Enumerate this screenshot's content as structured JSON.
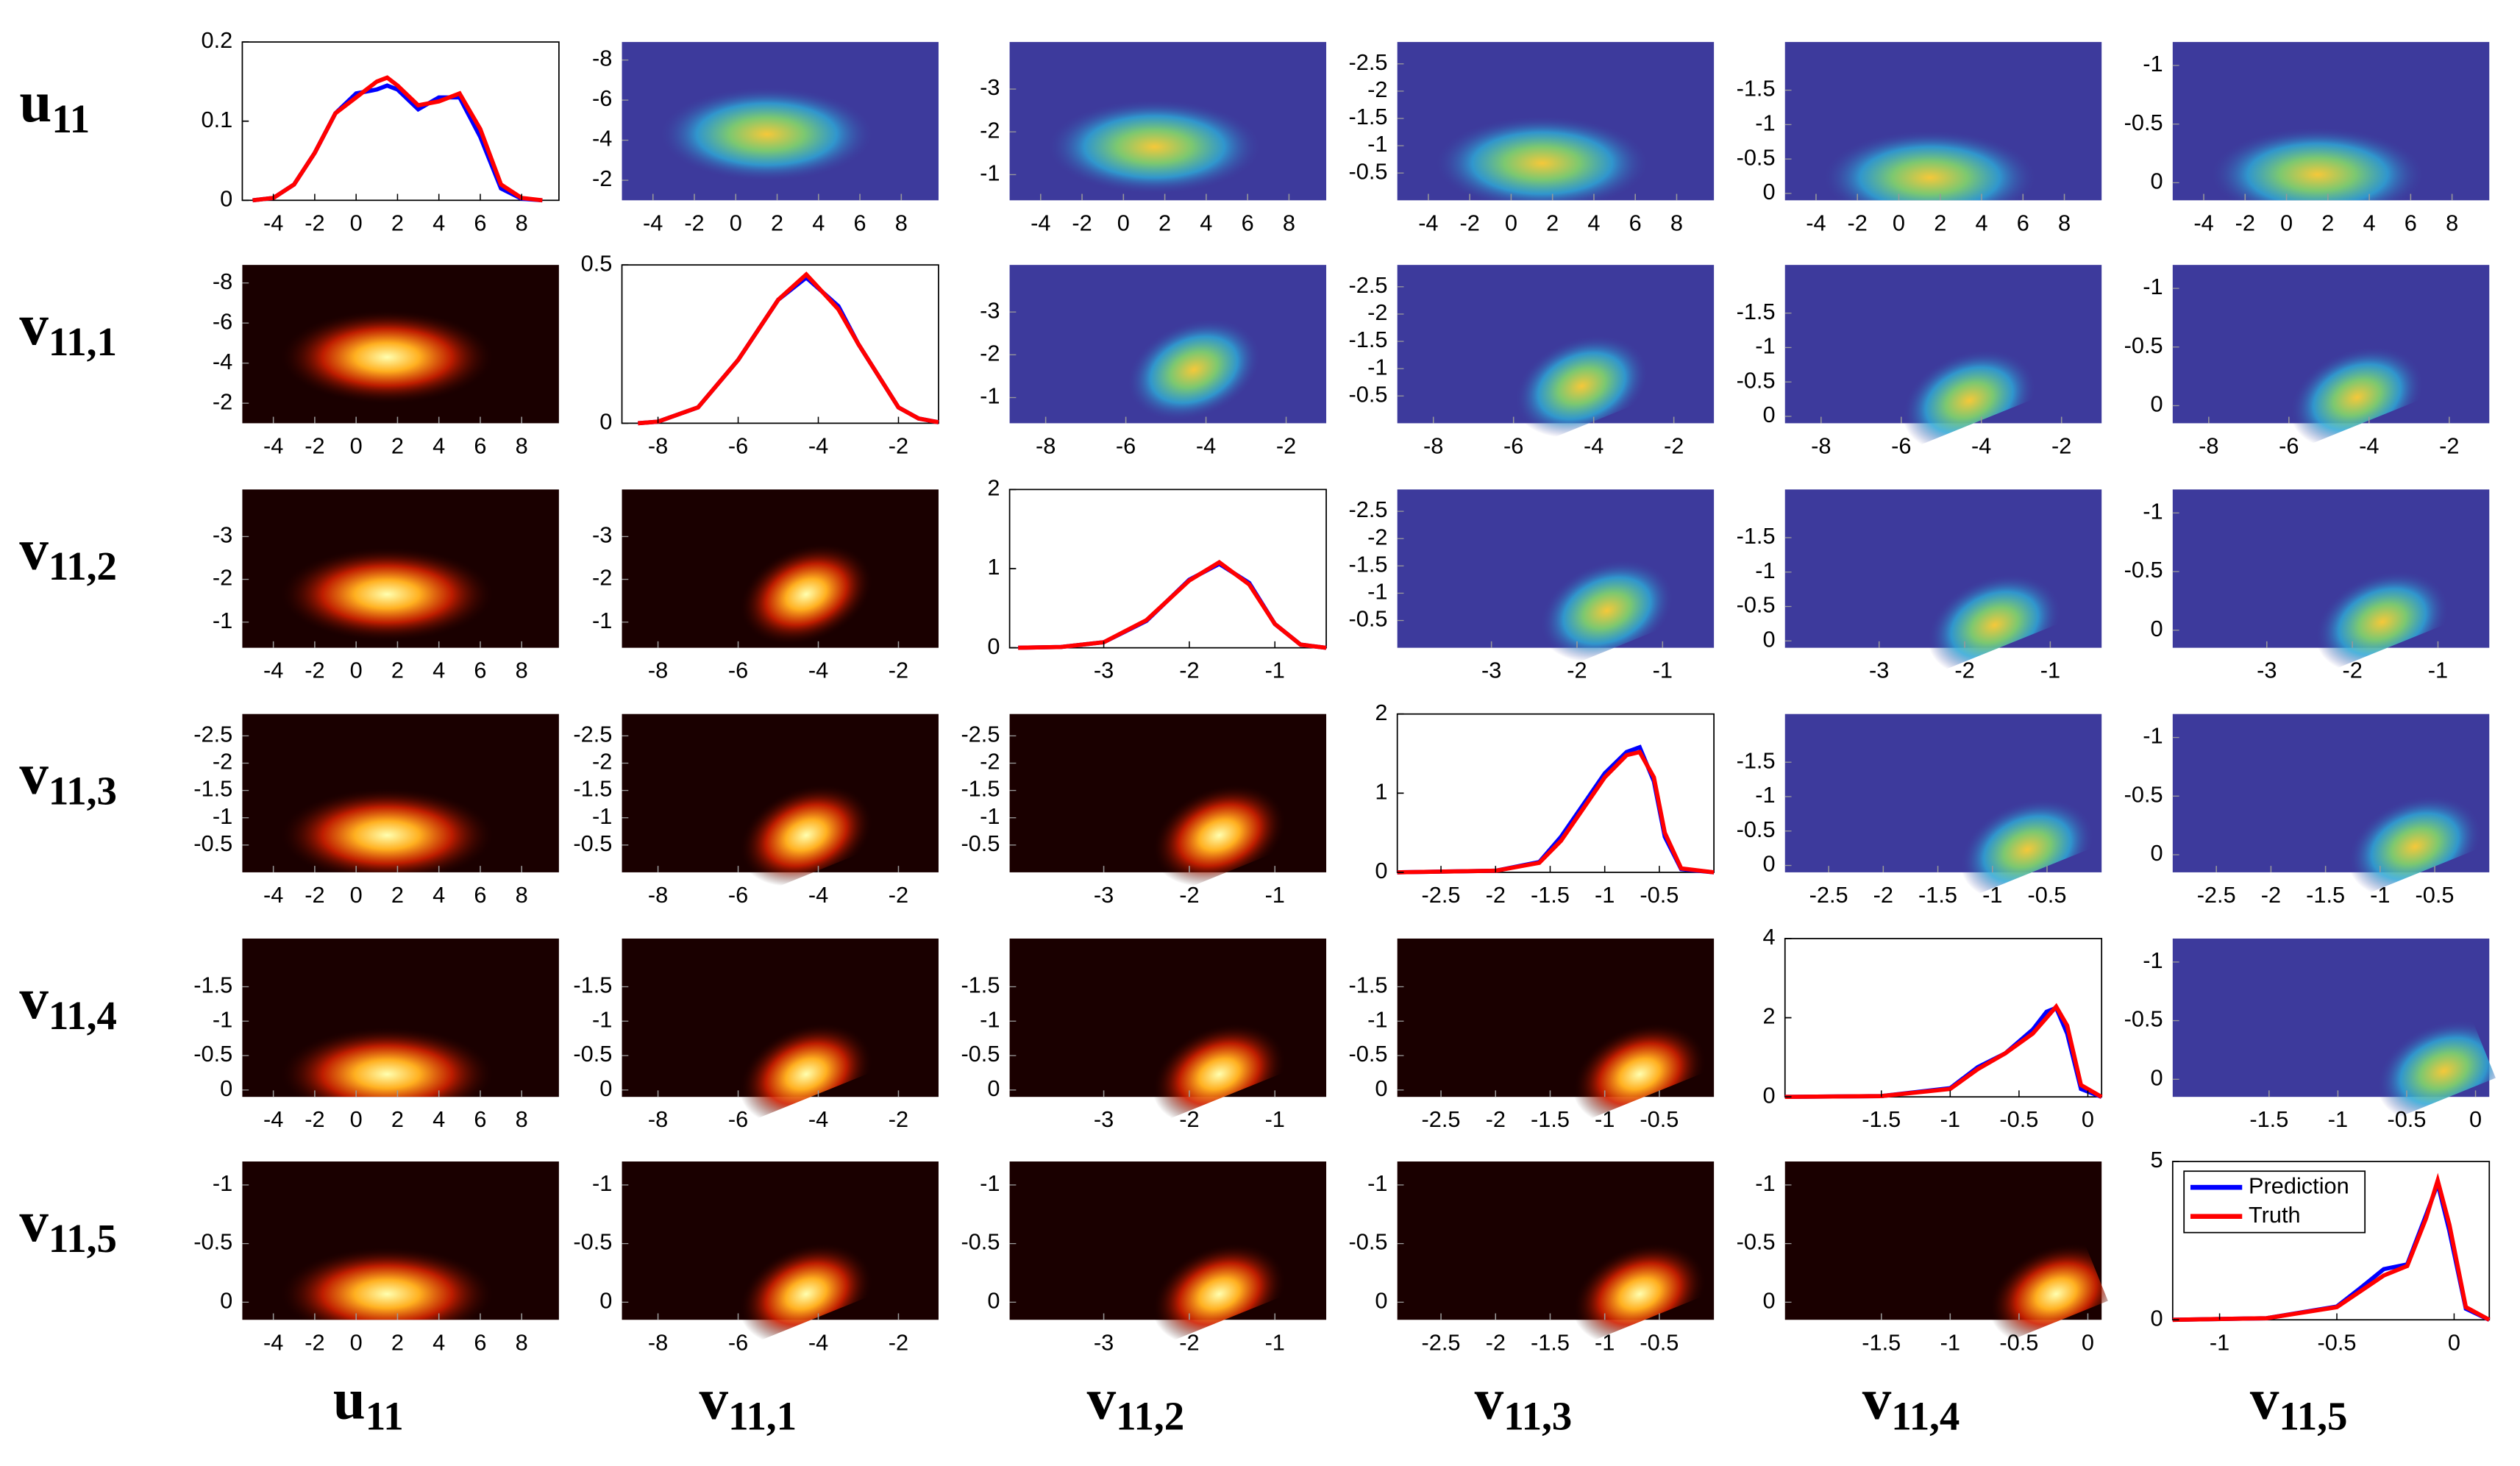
{
  "chart_data": {
    "type": "pairs",
    "series": [
      {
        "name": "Prediction",
        "color": "#0000ff"
      },
      {
        "name": "Truth",
        "color": "#ff0000"
      }
    ],
    "legend": "top-left",
    "variables": [
      {
        "base": "u",
        "sub": "11",
        "lim": [
          -5.5,
          9.8
        ],
        "ticks": [
          -4,
          -2,
          0,
          2,
          4,
          6,
          8
        ],
        "density": {
          "ylim": [
            0,
            0.2
          ],
          "yticks": [
            0,
            0.1,
            0.2
          ],
          "x": [
            -5,
            -4,
            -3,
            -2,
            -1,
            0,
            1,
            1.5,
            2,
            3,
            4,
            5,
            6,
            7,
            8,
            9
          ],
          "values": [
            [
              0,
              0.003,
              0.02,
              0.06,
              0.11,
              0.135,
              0.14,
              0.145,
              0.14,
              0.115,
              0.13,
              0.13,
              0.08,
              0.015,
              0.002,
              0
            ],
            [
              0,
              0.003,
              0.02,
              0.06,
              0.11,
              0.13,
              0.15,
              0.155,
              0.145,
              0.12,
              0.125,
              0.135,
              0.09,
              0.02,
              0.003,
              0
            ]
          ]
        }
      },
      {
        "base": "v",
        "sub": "11,1",
        "lim": [
          -8.9,
          -1
        ],
        "ticks": [
          -8,
          -6,
          -4,
          -2
        ],
        "density": {
          "ylim": [
            0,
            0.5
          ],
          "yticks": [
            0,
            0.5
          ],
          "x": [
            -8.5,
            -8,
            -7,
            -6,
            -5,
            -4.3,
            -3.5,
            -3,
            -2,
            -1.5,
            -1
          ],
          "values": [
            [
              0,
              0.005,
              0.05,
              0.2,
              0.39,
              0.46,
              0.37,
              0.25,
              0.05,
              0.015,
              0.003
            ],
            [
              0,
              0.005,
              0.05,
              0.2,
              0.39,
              0.47,
              0.36,
              0.25,
              0.05,
              0.015,
              0.003
            ]
          ]
        }
      },
      {
        "base": "v",
        "sub": "11,2",
        "lim": [
          -4.1,
          -0.4
        ],
        "ticks": [
          -3,
          -2,
          -1
        ],
        "density": {
          "ylim": [
            0,
            2
          ],
          "yticks": [
            0,
            1,
            2
          ],
          "x": [
            -4,
            -3.5,
            -3,
            -2.5,
            -2,
            -1.65,
            -1.3,
            -1,
            -0.7,
            -0.4
          ],
          "values": [
            [
              0,
              0.01,
              0.07,
              0.34,
              0.86,
              1.06,
              0.82,
              0.3,
              0.04,
              0
            ],
            [
              0,
              0.01,
              0.07,
              0.35,
              0.85,
              1.08,
              0.8,
              0.3,
              0.04,
              0
            ]
          ]
        }
      },
      {
        "base": "v",
        "sub": "11,3",
        "lim": [
          -2.9,
          0
        ],
        "ticks": [
          -2.5,
          -2,
          -1.5,
          -1,
          -0.5
        ],
        "density": {
          "ylim": [
            0,
            2
          ],
          "yticks": [
            0,
            1,
            2
          ],
          "x": [
            -2.9,
            -2,
            -1.6,
            -1.4,
            -1.2,
            -1,
            -0.8,
            -0.68,
            -0.55,
            -0.45,
            -0.3,
            0
          ],
          "values": [
            [
              0,
              0.02,
              0.13,
              0.45,
              0.85,
              1.25,
              1.52,
              1.58,
              1.15,
              0.45,
              0.04,
              0
            ],
            [
              0,
              0.02,
              0.12,
              0.4,
              0.8,
              1.2,
              1.48,
              1.52,
              1.2,
              0.5,
              0.05,
              0
            ]
          ]
        }
      },
      {
        "base": "v",
        "sub": "11,4",
        "lim": [
          -2.2,
          0.1
        ],
        "ticks": [
          -1.5,
          -1,
          -0.5,
          0
        ],
        "density": {
          "ylim": [
            0,
            4
          ],
          "yticks": [
            0,
            2,
            4
          ],
          "x": [
            -2.2,
            -1.5,
            -1,
            -0.8,
            -0.6,
            -0.4,
            -0.3,
            -0.23,
            -0.15,
            -0.05,
            0.1
          ],
          "values": [
            [
              0,
              0.02,
              0.22,
              0.75,
              1.1,
              1.7,
              2.15,
              2.25,
              1.6,
              0.2,
              0
            ],
            [
              0,
              0.02,
              0.2,
              0.7,
              1.1,
              1.6,
              2.0,
              2.28,
              1.8,
              0.3,
              0
            ]
          ]
        }
      },
      {
        "base": "v",
        "sub": "11,5",
        "lim": [
          -1.2,
          0.15
        ],
        "ticks": [
          -1,
          -0.5,
          0
        ],
        "density": {
          "ylim": [
            0,
            5
          ],
          "yticks": [
            0,
            5
          ],
          "x": [
            -1.2,
            -0.8,
            -0.5,
            -0.4,
            -0.3,
            -0.2,
            -0.12,
            -0.07,
            -0.02,
            0.05,
            0.15
          ],
          "values": [
            [
              0,
              0.05,
              0.42,
              1.0,
              1.6,
              1.75,
              3.3,
              4.3,
              2.8,
              0.35,
              0
            ],
            [
              0,
              0.05,
              0.4,
              0.9,
              1.4,
              1.7,
              3.2,
              4.4,
              3.0,
              0.4,
              0
            ]
          ]
        }
      }
    ]
  }
}
